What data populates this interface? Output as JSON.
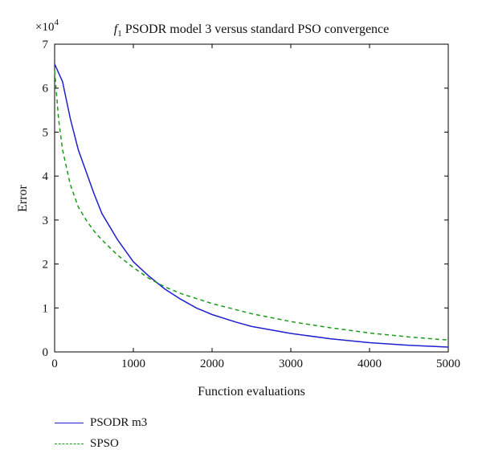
{
  "chart_data": {
    "type": "line",
    "title_prefix": "f",
    "title_subscript": "1",
    "title": " PSODR model 3 versus standard PSO convergence",
    "xlabel": "Function evaluations",
    "ylabel": "Error",
    "y_multiplier_base": "×10",
    "y_multiplier_exp": "4",
    "xlim": [
      0,
      5000
    ],
    "ylim": [
      0,
      7
    ],
    "xticks": [
      0,
      1000,
      2000,
      3000,
      4000,
      5000
    ],
    "yticks": [
      0,
      1,
      2,
      3,
      4,
      5,
      6,
      7
    ],
    "grid": false,
    "legend_position": "below-left",
    "series": [
      {
        "name": "PSODR m3",
        "color": "#1f1fd0",
        "style": "solid",
        "x": [
          0,
          100,
          200,
          300,
          400,
          500,
          600,
          700,
          800,
          900,
          1000,
          1200,
          1400,
          1600,
          1800,
          2000,
          2300,
          2500,
          3000,
          3500,
          4000,
          4500,
          5000
        ],
        "y": [
          6.55,
          6.15,
          5.3,
          4.6,
          4.1,
          3.6,
          3.15,
          2.85,
          2.55,
          2.3,
          2.05,
          1.72,
          1.43,
          1.2,
          1.0,
          0.85,
          0.68,
          0.58,
          0.42,
          0.3,
          0.21,
          0.15,
          0.11
        ]
      },
      {
        "name": "SPSO",
        "color": "#1a9a1a",
        "style": "dashed",
        "x": [
          0,
          50,
          100,
          200,
          300,
          400,
          500,
          600,
          800,
          1000,
          1200,
          1400,
          1600,
          2000,
          2500,
          3000,
          3500,
          4000,
          4500,
          5000
        ],
        "y": [
          6.4,
          5.3,
          4.6,
          3.8,
          3.3,
          3.0,
          2.75,
          2.55,
          2.2,
          1.92,
          1.67,
          1.48,
          1.33,
          1.1,
          0.87,
          0.69,
          0.55,
          0.43,
          0.34,
          0.27
        ]
      }
    ]
  }
}
